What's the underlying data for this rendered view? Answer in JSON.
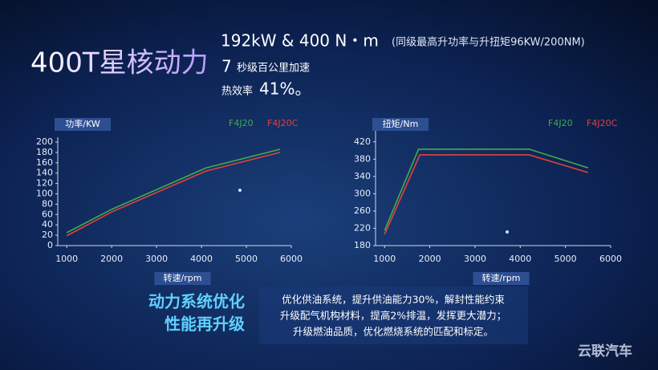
{
  "header": {
    "title": "400T星核动力",
    "spec": "192kW & 400 N・m",
    "spec_note": "(同级最高升功率与升扭矩96KW/200NM)",
    "accel_value": "7",
    "accel_text": "秒级百公里加速",
    "efficiency_text": "热效率",
    "efficiency_value": "41%。"
  },
  "chart_data": [
    {
      "type": "line",
      "y_label": "功率/KW",
      "x_label": "转速/rpm",
      "xlim": [
        800,
        6000
      ],
      "xticks": [
        1000,
        2000,
        3000,
        4000,
        5000,
        6000
      ],
      "ylim": [
        0,
        200
      ],
      "yticks": [
        0,
        20,
        40,
        60,
        80,
        100,
        120,
        140,
        160,
        180,
        200
      ],
      "series": [
        {
          "name": "F4J20",
          "color": "#3fae4a",
          "x": [
            1000,
            2000,
            4100,
            5750
          ],
          "values": [
            25,
            70,
            150,
            186
          ]
        },
        {
          "name": "F4J20C",
          "color": "#e5403a",
          "x": [
            1000,
            2000,
            4100,
            5750
          ],
          "values": [
            19,
            65,
            144,
            180
          ]
        }
      ]
    },
    {
      "type": "line",
      "y_label": "扭矩/Nm",
      "x_label": "转速/rpm",
      "xlim": [
        800,
        6000
      ],
      "xticks": [
        1000,
        2000,
        3000,
        4000,
        5000,
        6000
      ],
      "ylim": [
        180,
        440
      ],
      "yticks": [
        180,
        220,
        260,
        300,
        340,
        380,
        420
      ],
      "series": [
        {
          "name": "F4J20",
          "color": "#3fae4a",
          "x": [
            1000,
            1750,
            4200,
            5500
          ],
          "values": [
            215,
            403,
            403,
            360
          ]
        },
        {
          "name": "F4J20C",
          "color": "#e5403a",
          "x": [
            1000,
            1780,
            4200,
            5500
          ],
          "values": [
            206,
            390,
            390,
            349
          ]
        }
      ]
    }
  ],
  "footer": {
    "slogan_1": "动力系统优化",
    "slogan_2": "性能再升级",
    "notes": [
      "优化供油系统，提升供油能力30%，解封性能约束",
      "升级配气机构材料，提高2%排温，发挥更大潜力；",
      "升级燃油品质，优化燃烧系统的匹配和标定。"
    ],
    "watermark": "云联汽车"
  }
}
